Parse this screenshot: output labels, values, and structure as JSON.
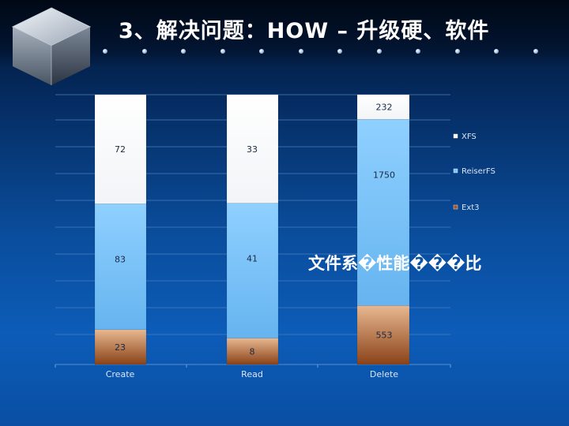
{
  "slide": {
    "title": "3、解决问题：HOW – 升级硬、软件"
  },
  "chart_data": {
    "type": "bar",
    "stacked": true,
    "title": "文件系�性能���比",
    "categories": [
      "Create",
      "Read",
      "Delete"
    ],
    "series": [
      {
        "name": "Ext3",
        "values": [
          23,
          8,
          553
        ],
        "color": "#a0562a"
      },
      {
        "name": "ReiserFS",
        "values": [
          83,
          41,
          1750
        ],
        "color": "#7cc4ff"
      },
      {
        "name": "XFS",
        "values": [
          72,
          33,
          232
        ],
        "color": "#ffffff"
      }
    ],
    "legend_position": "right",
    "grid": true,
    "yaxis_labels": false
  }
}
